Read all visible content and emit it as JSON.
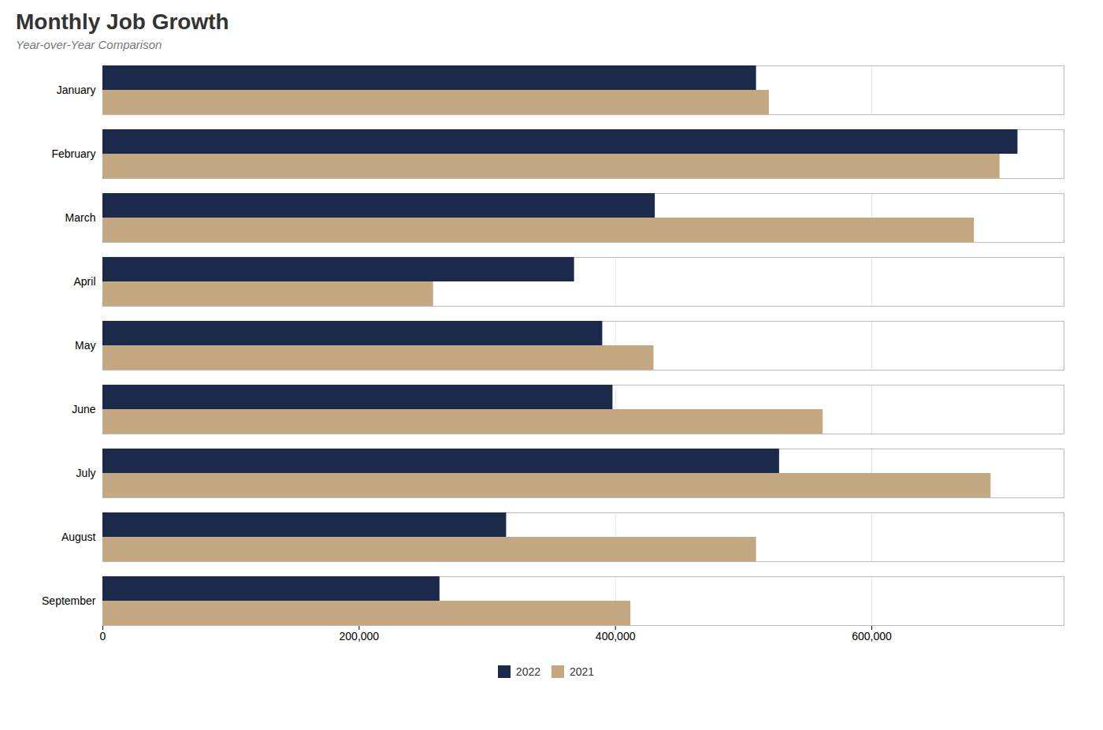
{
  "chart_data": {
    "type": "bar",
    "orientation": "horizontal",
    "title": "Monthly Job Growth",
    "subtitle": "Year-over-Year Comparison",
    "categories": [
      "January",
      "February",
      "March",
      "April",
      "May",
      "June",
      "July",
      "August",
      "September"
    ],
    "series": [
      {
        "name": "2022",
        "color": "#1b2a4a",
        "values": [
          510000,
          714000,
          431000,
          368000,
          390000,
          398000,
          528000,
          315000,
          263000
        ]
      },
      {
        "name": "2021",
        "color": "#c4a882",
        "values": [
          520000,
          700000,
          680000,
          258000,
          430000,
          562000,
          693000,
          510000,
          412000
        ]
      }
    ],
    "xlim": [
      0,
      750000
    ],
    "xticks": [
      0,
      {
        "value": 200000,
        "label": "200,000"
      },
      {
        "value": 400000,
        "label": "400,000"
      },
      {
        "value": 600000,
        "label": "600,000"
      }
    ],
    "grid": true,
    "legend": "bottom"
  }
}
